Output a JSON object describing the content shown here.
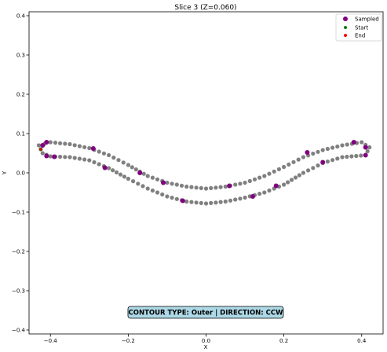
{
  "chart_data": {
    "type": "scatter",
    "title": "Slice 3 (Z=0.060)",
    "xlabel": "X",
    "ylabel": "Y",
    "xlim": [
      -0.455,
      0.455
    ],
    "ylim": [
      -0.41,
      0.41
    ],
    "x_ticks": [
      -0.4,
      -0.2,
      0.0,
      0.2,
      0.4
    ],
    "x_tick_labels": [
      "−0.4",
      "−0.2",
      "0.0",
      "0.2",
      "0.4"
    ],
    "y_ticks": [
      -0.4,
      -0.3,
      -0.2,
      -0.1,
      0.0,
      0.1,
      0.2,
      0.3,
      0.4
    ],
    "y_tick_labels": [
      "−0.4",
      "−0.3",
      "−0.2",
      "−0.1",
      "0.0",
      "0.1",
      "0.2",
      "0.3",
      "0.4"
    ],
    "grid": false,
    "legend_position": "top-right",
    "legend": [
      {
        "label": "Sampled",
        "color": "#800080"
      },
      {
        "label": "Start",
        "color": "#008000"
      },
      {
        "label": "End",
        "color": "#ff0000"
      }
    ],
    "contour_color": "#808080",
    "contour_keypoints": {
      "upper": [
        [
          -0.43,
          0.07
        ],
        [
          -0.4,
          0.078
        ],
        [
          -0.35,
          0.073
        ],
        [
          -0.3,
          0.063
        ],
        [
          -0.25,
          0.045
        ],
        [
          -0.2,
          0.02
        ],
        [
          -0.15,
          -0.008
        ],
        [
          -0.1,
          -0.025
        ],
        [
          -0.05,
          -0.035
        ],
        [
          0.0,
          -0.04
        ],
        [
          0.05,
          -0.035
        ],
        [
          0.1,
          -0.025
        ],
        [
          0.15,
          -0.008
        ],
        [
          0.2,
          0.015
        ],
        [
          0.25,
          0.04
        ],
        [
          0.3,
          0.058
        ],
        [
          0.35,
          0.07
        ],
        [
          0.4,
          0.078
        ],
        [
          0.42,
          0.065
        ]
      ],
      "lower": [
        [
          0.42,
          0.065
        ],
        [
          0.41,
          0.045
        ],
        [
          0.35,
          0.04
        ],
        [
          0.3,
          0.025
        ],
        [
          0.25,
          0.0
        ],
        [
          0.2,
          -0.03
        ],
        [
          0.15,
          -0.05
        ],
        [
          0.1,
          -0.063
        ],
        [
          0.05,
          -0.073
        ],
        [
          0.0,
          -0.078
        ],
        [
          -0.05,
          -0.073
        ],
        [
          -0.1,
          -0.06
        ],
        [
          -0.15,
          -0.04
        ],
        [
          -0.2,
          -0.015
        ],
        [
          -0.25,
          0.012
        ],
        [
          -0.3,
          0.032
        ],
        [
          -0.35,
          0.04
        ],
        [
          -0.4,
          0.042
        ],
        [
          -0.42,
          0.05
        ],
        [
          -0.43,
          0.07
        ]
      ]
    },
    "sampled_points": [
      [
        -0.42,
        0.07
      ],
      [
        -0.41,
        0.078
      ],
      [
        -0.29,
        0.062
      ],
      [
        -0.11,
        -0.025
      ],
      [
        0.06,
        -0.033
      ],
      [
        0.26,
        0.052
      ],
      [
        0.38,
        0.078
      ],
      [
        0.41,
        0.065
      ],
      [
        0.41,
        0.045
      ],
      [
        0.3,
        0.027
      ],
      [
        0.18,
        -0.033
      ],
      [
        0.12,
        -0.06
      ],
      [
        -0.06,
        -0.071
      ],
      [
        -0.17,
        0.0
      ],
      [
        -0.26,
        0.013
      ],
      [
        -0.39,
        0.041
      ],
      [
        -0.41,
        0.043
      ]
    ],
    "start_point": [
      -0.425,
      0.06
    ],
    "end_point": [
      -0.425,
      0.06
    ],
    "annotation": "CONTOUR TYPE: Outer | DIRECTION: CCW",
    "annotation_bg": "#add8e6"
  }
}
